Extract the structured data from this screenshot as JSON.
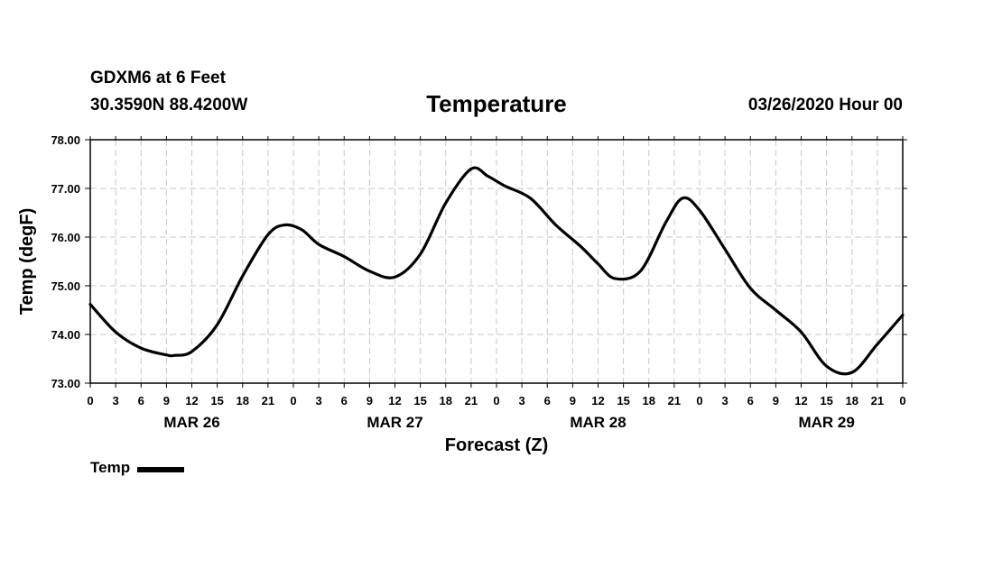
{
  "header": {
    "station": "GDXM6 at 6 Feet",
    "coords": "30.3590N 88.4200W",
    "title": "Temperature",
    "datetime": "03/26/2020 Hour 00"
  },
  "legend": {
    "label": "Temp"
  },
  "chart_data": {
    "type": "line",
    "title": "Temperature",
    "xlabel": "Forecast (Z)",
    "ylabel": "Temp (degF)",
    "ylim": [
      73.0,
      78.0
    ],
    "xlim": [
      0,
      96
    ],
    "y_ticks": [
      "73.00",
      "74.00",
      "75.00",
      "76.00",
      "77.00",
      "78.00"
    ],
    "x_tick_hours": [
      0,
      3,
      6,
      9,
      12,
      15,
      18,
      21,
      24,
      27,
      30,
      33,
      36,
      39,
      42,
      45,
      48,
      51,
      54,
      57,
      60,
      63,
      66,
      69,
      72,
      75,
      78,
      81,
      84,
      87,
      90,
      93,
      96
    ],
    "x_tick_labels": [
      "0",
      "3",
      "6",
      "9",
      "12",
      "15",
      "18",
      "21",
      "0",
      "3",
      "6",
      "9",
      "12",
      "15",
      "18",
      "21",
      "0",
      "3",
      "6",
      "9",
      "12",
      "15",
      "18",
      "21",
      "0",
      "3",
      "6",
      "9",
      "12",
      "15",
      "18",
      "21",
      "0"
    ],
    "date_labels": [
      {
        "hour": 12,
        "label": "MAR 26"
      },
      {
        "hour": 36,
        "label": "MAR 27"
      },
      {
        "hour": 60,
        "label": "MAR 28"
      },
      {
        "hour": 87,
        "label": "MAR 29"
      }
    ],
    "grid": true,
    "color": "#000000",
    "series": [
      {
        "name": "Temp",
        "x": [
          0,
          3,
          6,
          9,
          10,
          12,
          15,
          18,
          21,
          23,
          25,
          27,
          30,
          33,
          36,
          39,
          42,
          45,
          47,
          49,
          52,
          55,
          58,
          60,
          62,
          65,
          68,
          70,
          72,
          75,
          78,
          81,
          84,
          87,
          90,
          93,
          96
        ],
        "values": [
          74.62,
          74.05,
          73.72,
          73.58,
          73.57,
          73.65,
          74.2,
          75.2,
          76.05,
          76.25,
          76.15,
          75.85,
          75.6,
          75.3,
          75.18,
          75.65,
          76.7,
          77.4,
          77.25,
          77.05,
          76.8,
          76.25,
          75.8,
          75.45,
          75.15,
          75.3,
          76.3,
          76.8,
          76.55,
          75.75,
          74.95,
          74.5,
          74.05,
          73.35,
          73.22,
          73.8,
          74.4
        ]
      }
    ]
  }
}
